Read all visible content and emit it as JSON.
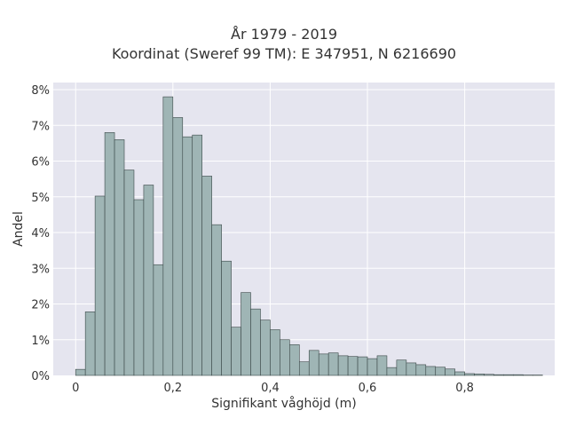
{
  "chart_data": {
    "type": "bar",
    "title": "År 1979 - 2019",
    "subtitle": "Koordinat (Sweref 99 TM): E 347951, N 6216690",
    "xlabel": "Signifikant våghöjd (m)",
    "ylabel": "Andel",
    "bin_width": 0.02,
    "bin_start": 0.0,
    "xlim": [
      -0.046,
      0.985
    ],
    "ylim": [
      0,
      8.2
    ],
    "y_unit": "%",
    "x_ticks": [
      0,
      0.2,
      0.4,
      0.6,
      0.8
    ],
    "x_tick_labels": [
      "0",
      "0,2",
      "0,4",
      "0,6",
      "0,8"
    ],
    "y_ticks": [
      0,
      1,
      2,
      3,
      4,
      5,
      6,
      7,
      8
    ],
    "y_tick_labels": [
      "0%",
      "1%",
      "2%",
      "3%",
      "4%",
      "5%",
      "6%",
      "7%",
      "8%"
    ],
    "values": [
      0.17,
      1.78,
      5.02,
      6.8,
      6.6,
      5.75,
      4.92,
      5.33,
      3.1,
      7.8,
      7.22,
      6.68,
      6.73,
      5.58,
      4.22,
      3.2,
      1.35,
      2.32,
      1.86,
      1.55,
      1.28,
      1.0,
      0.86,
      0.38,
      0.7,
      0.6,
      0.63,
      0.55,
      0.53,
      0.52,
      0.47,
      0.55,
      0.22,
      0.43,
      0.35,
      0.3,
      0.25,
      0.23,
      0.18,
      0.1,
      0.05,
      0.04,
      0.03,
      0.02,
      0.02,
      0.02,
      0.01,
      0.01
    ],
    "grid": true,
    "colors": {
      "bar_fill": "#9fb5b5",
      "bar_stroke": "#3a4747",
      "plot_background": "#e5e5ef",
      "grid": "#ffffff"
    }
  }
}
